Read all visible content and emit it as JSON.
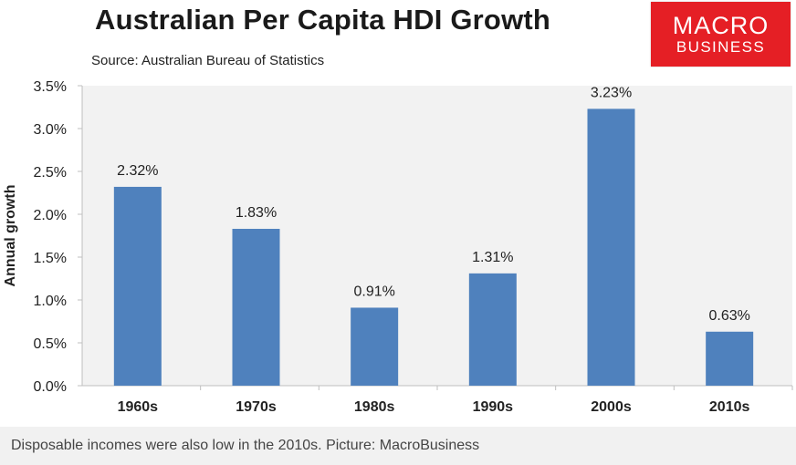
{
  "header": {
    "title": "Australian Per Capita HDI Growth",
    "subtitle": "Source: Australian Bureau of Statistics",
    "logo_line1": "MACRO",
    "logo_line2": "BUSINESS"
  },
  "caption": "Disposable incomes were also low in the 2010s. Picture: MacroBusiness",
  "colors": {
    "bar": "#4f81bd",
    "plot_bg": "#f2f2f2",
    "logo_bg": "#e51f25"
  },
  "chart_data": {
    "type": "bar",
    "title": "Australian Per Capita HDI Growth",
    "subtitle": "Source: Australian Bureau of Statistics",
    "xlabel": "",
    "ylabel": "Annual growth",
    "categories": [
      "1960s",
      "1970s",
      "1980s",
      "1990s",
      "2000s",
      "2010s"
    ],
    "values": [
      2.32,
      1.83,
      0.91,
      1.31,
      3.23,
      0.63
    ],
    "value_labels": [
      "2.32%",
      "1.83%",
      "0.91%",
      "1.31%",
      "3.23%",
      "0.63%"
    ],
    "ylim": [
      0,
      3.5
    ],
    "yticks": [
      0,
      0.5,
      1.0,
      1.5,
      2.0,
      2.5,
      3.0,
      3.5
    ],
    "ytick_labels": [
      "0.0%",
      "0.5%",
      "1.0%",
      "1.5%",
      "2.0%",
      "2.5%",
      "3.0%",
      "3.5%"
    ],
    "grid": false,
    "legend": "none"
  }
}
